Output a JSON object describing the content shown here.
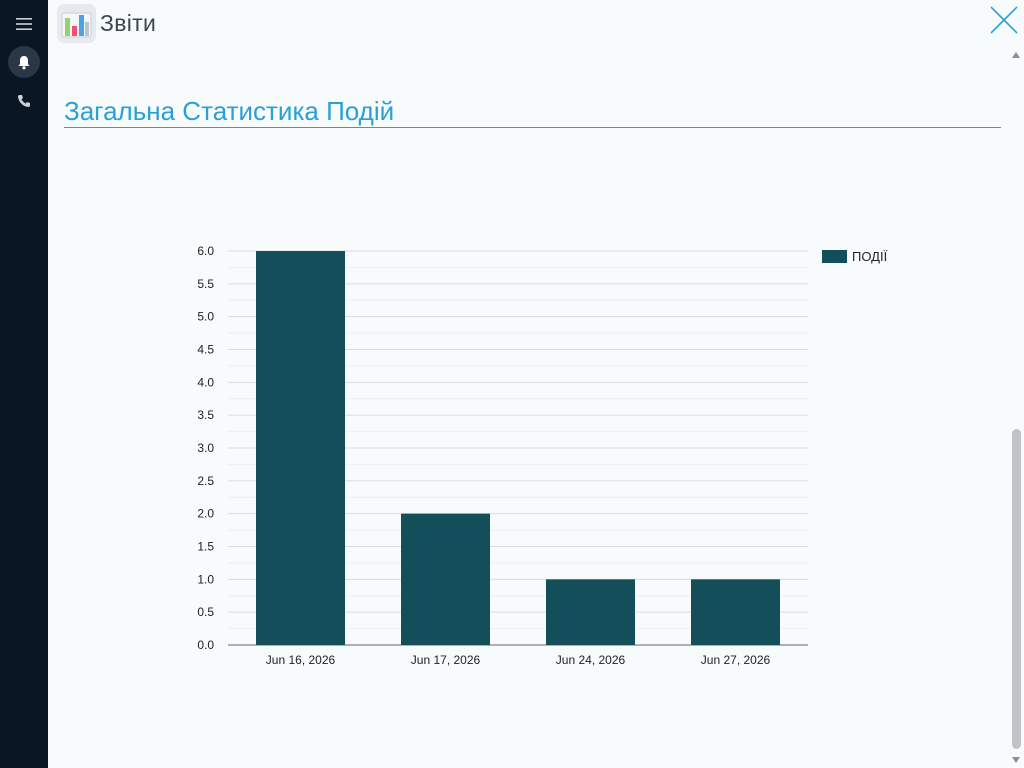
{
  "app": {
    "title": "Звіти",
    "icon": "reports-chart-icon"
  },
  "sidebar": {
    "items": [
      {
        "name": "menu",
        "icon": "hamburger-menu-icon"
      },
      {
        "name": "notifications",
        "icon": "bell-icon",
        "active": true
      },
      {
        "name": "calls",
        "icon": "phone-icon"
      }
    ]
  },
  "section": {
    "title": "Загальна Статистика Подій"
  },
  "colors": {
    "sidebar_bg": "#0a1624",
    "accent": "#2a9fd8",
    "bar": "#144e5a",
    "close": "#2a9fd8"
  },
  "chart_data": {
    "type": "bar",
    "categories": [
      "Jun 16, 2026",
      "Jun 17, 2026",
      "Jun 24, 2026",
      "Jun 27, 2026"
    ],
    "series": [
      {
        "name": "ПОДІЇ",
        "values": [
          6,
          2,
          1,
          1
        ]
      }
    ],
    "ylim": [
      0,
      6
    ],
    "yticks": [
      "0.0",
      "0.5",
      "1.0",
      "1.5",
      "2.0",
      "2.5",
      "3.0",
      "3.5",
      "4.0",
      "4.5",
      "5.0",
      "5.5",
      "6.0"
    ],
    "grid": true,
    "legend": "top-right"
  }
}
